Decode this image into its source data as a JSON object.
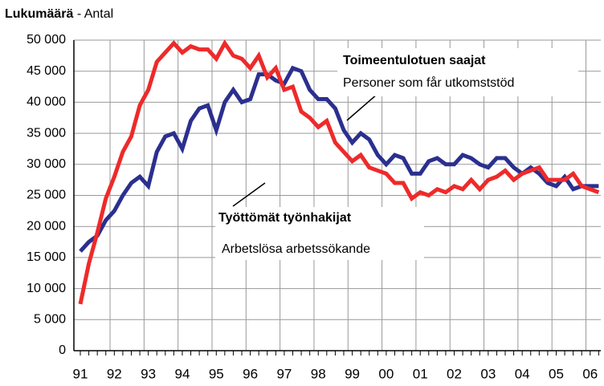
{
  "chart_data": {
    "type": "line",
    "title": "Lukumäärä",
    "subtitle": "- Antal",
    "categories": [
      "91",
      null,
      null,
      null,
      "92",
      null,
      null,
      null,
      "93",
      null,
      null,
      null,
      "94",
      null,
      null,
      null,
      "95",
      null,
      null,
      null,
      "96",
      null,
      null,
      null,
      "97",
      null,
      null,
      null,
      "98",
      null,
      null,
      null,
      "99",
      null,
      null,
      null,
      "00",
      null,
      null,
      null,
      "01",
      null,
      null,
      null,
      "02",
      null,
      null,
      null,
      "03",
      null,
      null,
      null,
      "04",
      null,
      null,
      null,
      "05",
      null,
      null,
      null,
      "06",
      null
    ],
    "series": [
      {
        "name": "Toimeentulotuen saajat",
        "color": "#2b2f8f",
        "values": [
          16000,
          17500,
          18500,
          21000,
          22500,
          25000,
          27000,
          28000,
          26500,
          32000,
          34500,
          35000,
          32500,
          37000,
          39000,
          39500,
          35500,
          40000,
          42000,
          40000,
          40500,
          44500,
          44500,
          43500,
          43000,
          45500,
          45000,
          42000,
          40500,
          40500,
          39000,
          35500,
          33500,
          35000,
          34000,
          31500,
          30000,
          31500,
          31000,
          28500,
          28500,
          30500,
          31000,
          30000,
          30000,
          31500,
          31000,
          30000,
          29500,
          31000,
          31000,
          29500,
          28500,
          29500,
          28500,
          27000,
          26500,
          28000,
          26000,
          26500,
          26500,
          26500
        ]
      },
      {
        "name": "Työttömät työnhakijat",
        "color": "#ee2a2a",
        "values": [
          7500,
          14000,
          19000,
          24500,
          28000,
          32000,
          34500,
          39500,
          42000,
          46500,
          48000,
          49500,
          48000,
          49000,
          48500,
          48500,
          47000,
          49500,
          47500,
          47000,
          45500,
          47500,
          44000,
          45500,
          42000,
          42500,
          38500,
          37500,
          36000,
          37000,
          33500,
          32000,
          30500,
          31500,
          29500,
          29000,
          28500,
          27000,
          27000,
          24500,
          25500,
          25000,
          26000,
          25500,
          26500,
          26000,
          27500,
          26000,
          27500,
          28000,
          29000,
          27500,
          28500,
          29000,
          29500,
          27500,
          27500,
          27500,
          28500,
          26500,
          26000,
          25500
        ]
      }
    ],
    "annotations": [
      "Personer som får utkomststöd",
      "Arbetslösa arbetssökande"
    ],
    "ylim": [
      0,
      50000
    ],
    "yticks": [
      0,
      {
        "value": 5000,
        "label": "5 000"
      },
      {
        "value": 10000,
        "label": "10 000"
      },
      {
        "value": 15000,
        "label": "15 000"
      },
      {
        "value": 20000,
        "label": "20 000"
      },
      {
        "value": 25000,
        "label": "25 000"
      },
      {
        "value": 30000,
        "label": "30 000"
      },
      {
        "value": 35000,
        "label": "35 000"
      },
      {
        "value": 40000,
        "label": "40 000"
      },
      {
        "value": 45000,
        "label": "45 000"
      },
      {
        "value": 50000,
        "label": "50 000"
      }
    ],
    "grid": true
  }
}
